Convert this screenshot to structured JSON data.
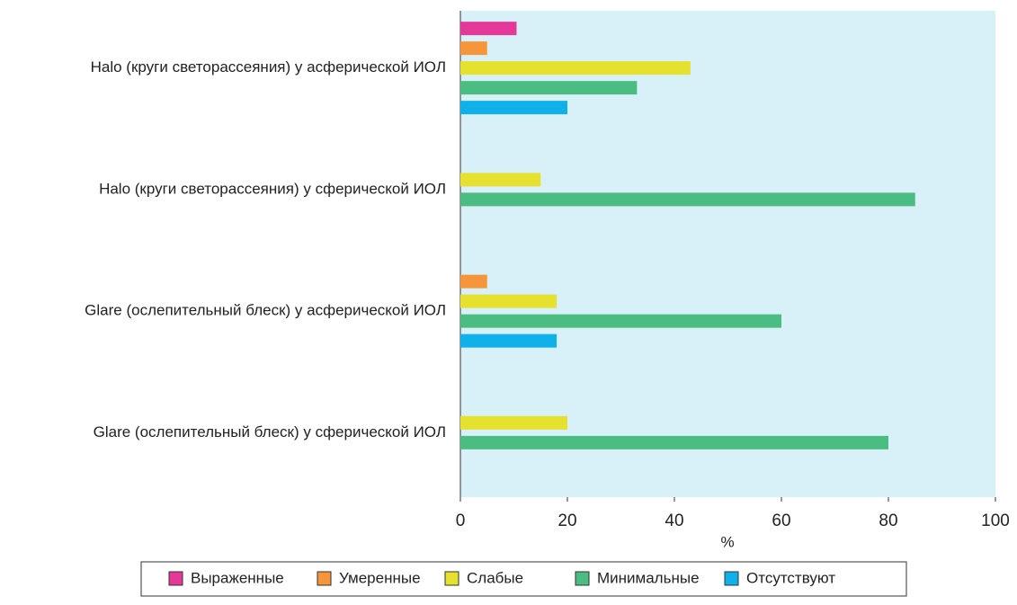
{
  "chart_data": {
    "type": "bar",
    "orientation": "horizontal",
    "categories": [
      "Halo (круги светорассеяния) у асферической ИОЛ",
      "Halo (круги светорассеяния) у сферической ИОЛ",
      "Glare (ослепительный блеск) у асферической ИОЛ",
      "Glare (ослепительный блеск) у сферической ИОЛ"
    ],
    "series": [
      {
        "name": "Выраженные",
        "color": "#e5399a",
        "values": [
          10.5,
          null,
          null,
          null
        ]
      },
      {
        "name": "Умеренные",
        "color": "#f7953a",
        "values": [
          5,
          null,
          5,
          null
        ]
      },
      {
        "name": "Слабые",
        "color": "#e6e02e",
        "values": [
          43,
          15,
          18,
          20
        ]
      },
      {
        "name": "Минимальные",
        "color": "#4cbd82",
        "values": [
          33,
          85,
          60,
          80
        ]
      },
      {
        "name": "Отсутствуют",
        "color": "#0fb1e8",
        "values": [
          20,
          null,
          18,
          null
        ]
      }
    ],
    "xlabel": "%",
    "xlim": [
      0,
      100
    ],
    "xticks": [
      0,
      20,
      40,
      60,
      80,
      100
    ],
    "background": "#d8f0f7"
  }
}
